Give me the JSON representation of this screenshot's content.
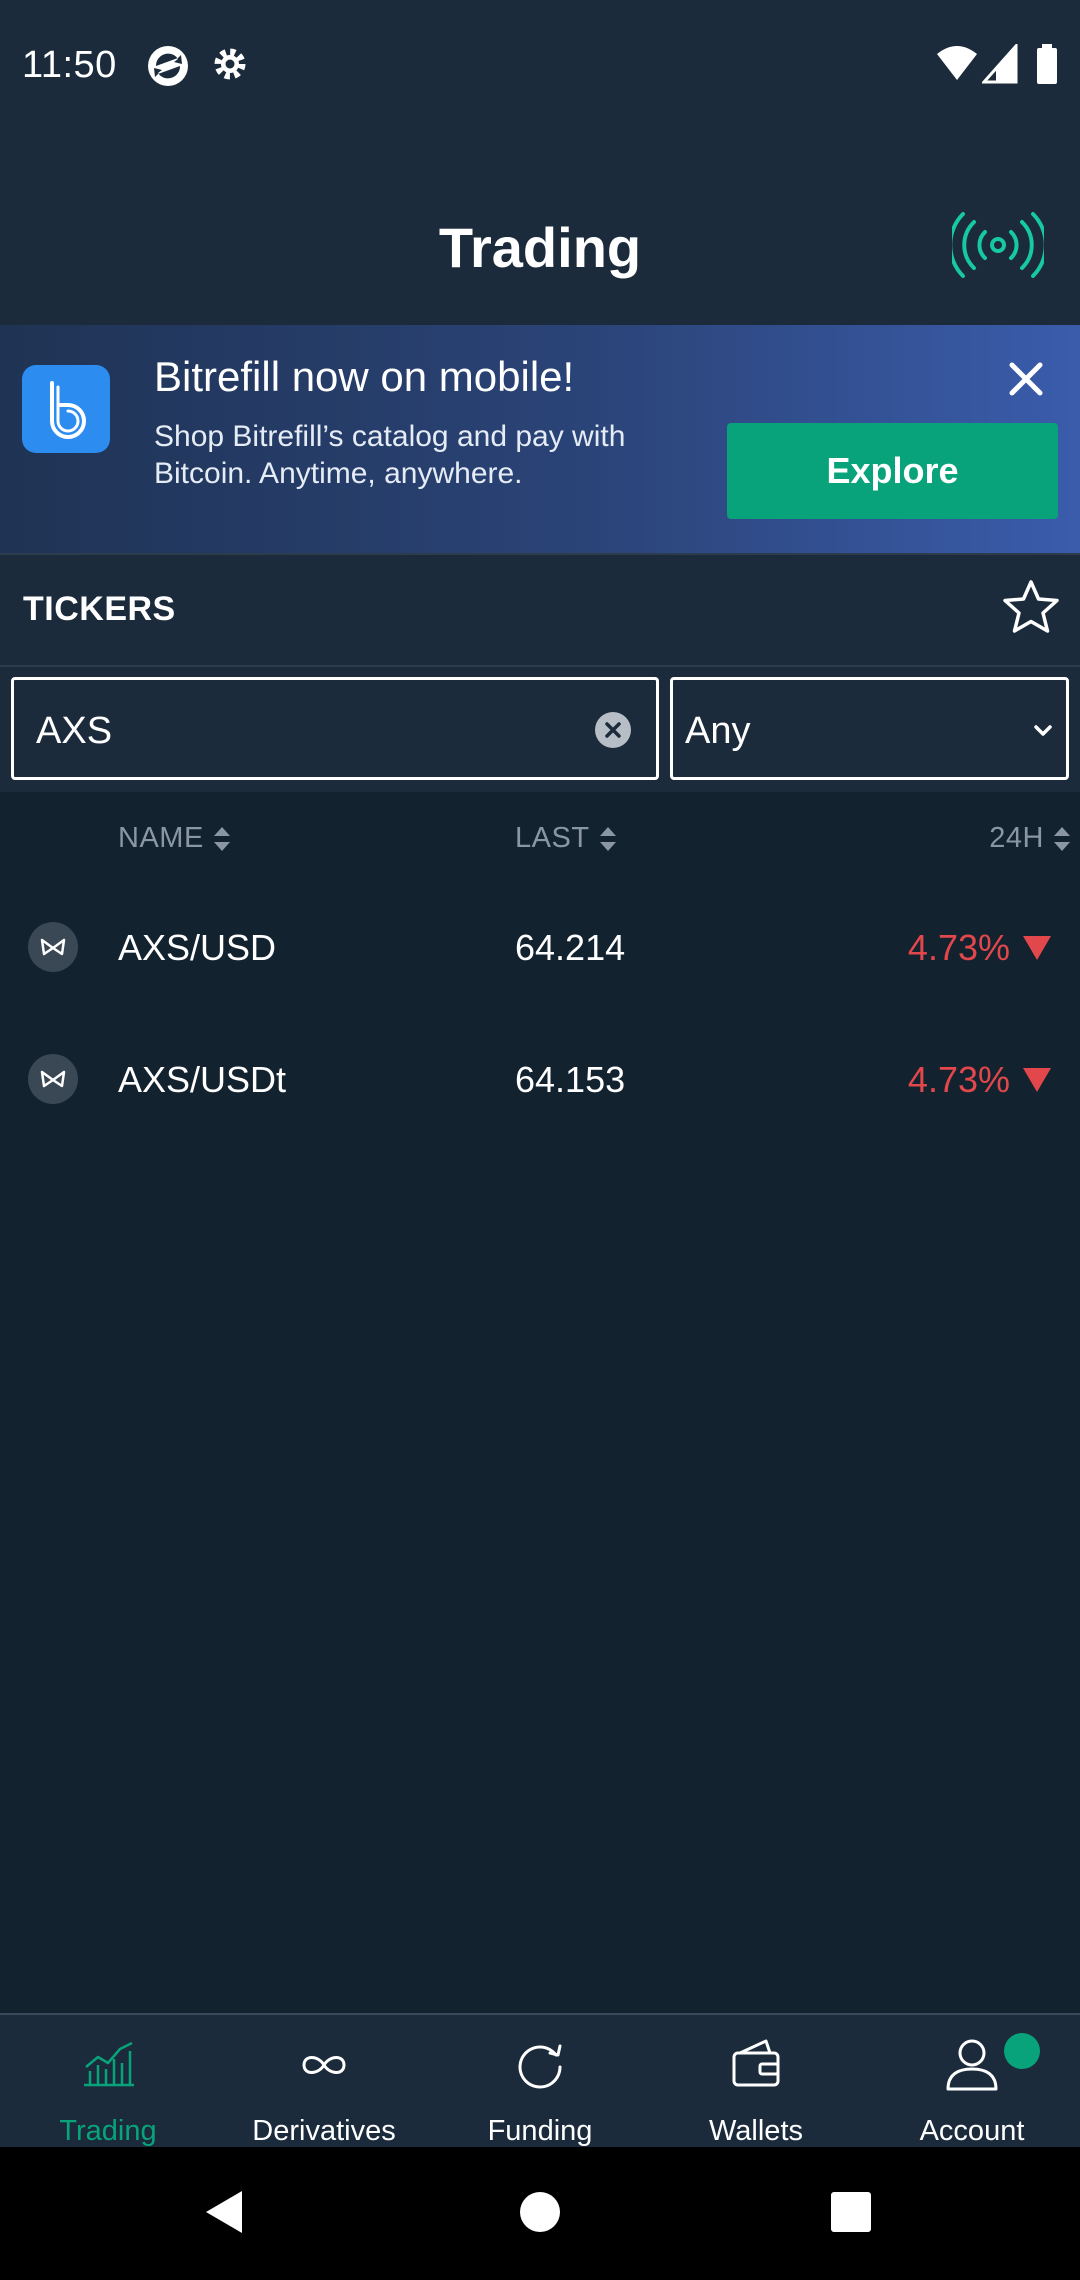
{
  "status_bar": {
    "time": "11:50"
  },
  "header": {
    "title": "Trading"
  },
  "banner": {
    "title": "Bitrefill now on mobile!",
    "text": "Shop Bitrefill’s catalog and pay with Bitcoin. Anytime, anywhere.",
    "button_label": "Explore"
  },
  "tickers": {
    "title": "TICKERS",
    "search_value": "AXS",
    "filter_value": "Any",
    "columns": {
      "name": "NAME",
      "last": "LAST",
      "change": "24H"
    },
    "rows": [
      {
        "name": "AXS/USD",
        "last": "64.214",
        "change": "4.73%"
      },
      {
        "name": "AXS/USDt",
        "last": "64.153",
        "change": "4.73%"
      }
    ]
  },
  "bottom_nav": {
    "items": [
      {
        "label": "Trading",
        "icon": "chart-icon",
        "active": true
      },
      {
        "label": "Derivatives",
        "icon": "infinity-icon",
        "active": false
      },
      {
        "label": "Funding",
        "icon": "refresh-icon",
        "active": false
      },
      {
        "label": "Wallets",
        "icon": "wallet-icon",
        "active": false
      },
      {
        "label": "Account",
        "icon": "user-icon",
        "active": false
      }
    ]
  },
  "colors": {
    "background": "#13222f",
    "surface": "#1b2b3b",
    "accent": "#08a37a",
    "negative": "#e2474b",
    "muted": "#8a96a3"
  }
}
